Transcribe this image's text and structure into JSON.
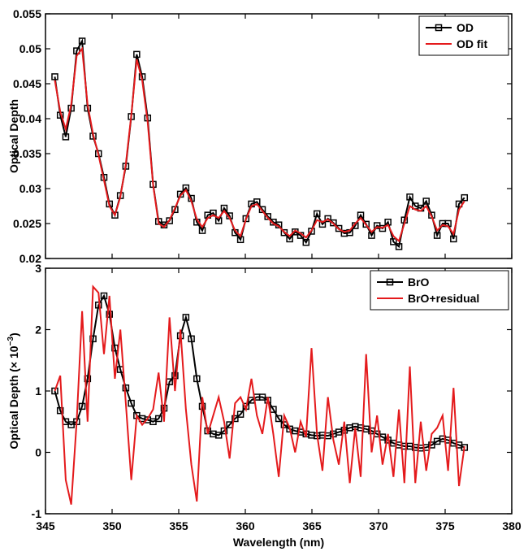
{
  "chart_data": [
    {
      "type": "line",
      "ylabel": "Optical Depth",
      "show_xtick_labels": false,
      "xlim": [
        345,
        380
      ],
      "xticks": [
        345,
        350,
        355,
        360,
        365,
        370,
        375,
        380
      ],
      "ylim": [
        0.02,
        0.055
      ],
      "yticks": [
        0.02,
        0.025,
        0.03,
        0.035,
        0.04,
        0.045,
        0.05,
        0.055
      ],
      "legend": "top-right",
      "x": [
        345.7,
        346.11,
        346.52,
        346.93,
        347.34,
        347.75,
        348.16,
        348.57,
        348.98,
        349.39,
        349.8,
        350.21,
        350.62,
        351.03,
        351.44,
        351.85,
        352.26,
        352.67,
        353.08,
        353.49,
        353.9,
        354.31,
        354.72,
        355.13,
        355.54,
        355.95,
        356.36,
        356.77,
        357.18,
        357.59,
        358.0,
        358.41,
        358.82,
        359.23,
        359.64,
        360.05,
        360.46,
        360.87,
        361.28,
        361.69,
        362.1,
        362.51,
        362.92,
        363.33,
        363.74,
        364.15,
        364.56,
        364.97,
        365.38,
        365.79,
        366.2,
        366.61,
        367.02,
        367.43,
        367.84,
        368.25,
        368.66,
        369.07,
        369.48,
        369.89,
        370.3,
        370.71,
        371.12,
        371.53,
        371.94,
        372.35,
        372.76,
        373.17,
        373.58,
        373.99,
        374.4,
        374.81,
        375.22,
        375.63,
        376.04,
        376.45
      ],
      "series": [
        {
          "name": "OD",
          "color": "#000000",
          "marker": "square",
          "values": [
            0.046,
            0.0405,
            0.0374,
            0.0415,
            0.0497,
            0.0511,
            0.0415,
            0.0375,
            0.035,
            0.0316,
            0.0278,
            0.0262,
            0.029,
            0.0332,
            0.0403,
            0.0492,
            0.046,
            0.0401,
            0.0306,
            0.0253,
            0.0248,
            0.0254,
            0.027,
            0.0292,
            0.0301,
            0.0286,
            0.0252,
            0.024,
            0.0262,
            0.0265,
            0.0254,
            0.0272,
            0.0261,
            0.0237,
            0.0227,
            0.0257,
            0.0278,
            0.0281,
            0.027,
            0.026,
            0.0252,
            0.0248,
            0.0237,
            0.0228,
            0.0238,
            0.0233,
            0.0223,
            0.0239,
            0.0264,
            0.0249,
            0.0257,
            0.0251,
            0.0243,
            0.0236,
            0.0237,
            0.0247,
            0.0262,
            0.0249,
            0.0233,
            0.0247,
            0.0243,
            0.0252,
            0.0224,
            0.0217,
            0.0255,
            0.0288,
            0.0275,
            0.0272,
            0.0282,
            0.0262,
            0.0233,
            0.025,
            0.025,
            0.0228,
            0.0278,
            0.0287
          ]
        },
        {
          "name": "OD fit",
          "color": "#e41a1c",
          "marker": "none",
          "values": [
            0.0455,
            0.041,
            0.0385,
            0.042,
            0.049,
            0.05,
            0.042,
            0.0378,
            0.0348,
            0.0312,
            0.0275,
            0.0262,
            0.0288,
            0.0335,
            0.0405,
            0.0485,
            0.0455,
            0.0395,
            0.0305,
            0.025,
            0.0245,
            0.0255,
            0.0272,
            0.029,
            0.0298,
            0.0282,
            0.0256,
            0.0245,
            0.0258,
            0.0262,
            0.0258,
            0.0268,
            0.0258,
            0.024,
            0.0232,
            0.0256,
            0.0275,
            0.0278,
            0.0268,
            0.0258,
            0.025,
            0.0246,
            0.0238,
            0.0232,
            0.024,
            0.0236,
            0.023,
            0.024,
            0.0255,
            0.0252,
            0.0256,
            0.025,
            0.0242,
            0.0238,
            0.024,
            0.025,
            0.0258,
            0.0248,
            0.0238,
            0.0245,
            0.0244,
            0.0248,
            0.0232,
            0.0225,
            0.025,
            0.0275,
            0.027,
            0.0268,
            0.0275,
            0.026,
            0.024,
            0.0248,
            0.0246,
            0.0235,
            0.027,
            0.0282
          ]
        }
      ]
    },
    {
      "type": "line",
      "ylabel": {
        "text": "Optical Depth (× 10",
        "superscript": "−3",
        "suffix": ")"
      },
      "xlabel": "Wavelength (nm)",
      "show_xtick_labels": true,
      "xlim": [
        345,
        380
      ],
      "xticks": [
        345,
        350,
        355,
        360,
        365,
        370,
        375,
        380
      ],
      "ylim": [
        -1,
        3
      ],
      "yticks": [
        -1,
        0,
        1,
        2,
        3
      ],
      "legend": "top-right",
      "x": [
        345.7,
        346.11,
        346.52,
        346.93,
        347.34,
        347.75,
        348.16,
        348.57,
        348.98,
        349.39,
        349.8,
        350.21,
        350.62,
        351.03,
        351.44,
        351.85,
        352.26,
        352.67,
        353.08,
        353.49,
        353.9,
        354.31,
        354.72,
        355.13,
        355.54,
        355.95,
        356.36,
        356.77,
        357.18,
        357.59,
        358.0,
        358.41,
        358.82,
        359.23,
        359.64,
        360.05,
        360.46,
        360.87,
        361.28,
        361.69,
        362.1,
        362.51,
        362.92,
        363.33,
        363.74,
        364.15,
        364.56,
        364.97,
        365.38,
        365.79,
        366.2,
        366.61,
        367.02,
        367.43,
        367.84,
        368.25,
        368.66,
        369.07,
        369.48,
        369.89,
        370.3,
        370.71,
        371.12,
        371.53,
        371.94,
        372.35,
        372.76,
        373.17,
        373.58,
        373.99,
        374.4,
        374.81,
        375.22,
        375.63,
        376.04,
        376.45
      ],
      "series": [
        {
          "name": "BrO",
          "color": "#000000",
          "marker": "square",
          "values": [
            1.0,
            0.68,
            0.5,
            0.45,
            0.5,
            0.75,
            1.2,
            1.85,
            2.4,
            2.55,
            2.25,
            1.7,
            1.35,
            1.05,
            0.8,
            0.6,
            0.55,
            0.53,
            0.5,
            0.55,
            0.72,
            1.15,
            1.25,
            1.9,
            2.2,
            1.85,
            1.2,
            0.75,
            0.35,
            0.3,
            0.28,
            0.35,
            0.45,
            0.55,
            0.62,
            0.75,
            0.85,
            0.9,
            0.9,
            0.85,
            0.7,
            0.55,
            0.45,
            0.38,
            0.35,
            0.33,
            0.3,
            0.28,
            0.27,
            0.28,
            0.27,
            0.3,
            0.33,
            0.36,
            0.4,
            0.42,
            0.4,
            0.38,
            0.35,
            0.3,
            0.25,
            0.2,
            0.15,
            0.12,
            0.1,
            0.1,
            0.08,
            0.07,
            0.08,
            0.12,
            0.18,
            0.22,
            0.2,
            0.15,
            0.12,
            0.08
          ]
        },
        {
          "name": "BrO+residual",
          "color": "#e41a1c",
          "marker": "none",
          "values": [
            1.0,
            1.25,
            -0.45,
            -0.85,
            0.5,
            2.3,
            0.5,
            2.7,
            2.6,
            1.6,
            2.55,
            1.2,
            2.0,
            0.8,
            -0.45,
            0.6,
            0.45,
            0.55,
            0.7,
            1.3,
            0.5,
            2.2,
            1.0,
            2.0,
            0.7,
            -0.2,
            -0.8,
            0.9,
            0.3,
            0.6,
            0.9,
            0.5,
            -0.1,
            0.8,
            0.9,
            0.7,
            1.2,
            0.6,
            0.3,
            0.9,
            0.3,
            -0.4,
            0.6,
            0.4,
            0.0,
            0.5,
            0.25,
            1.7,
            0.3,
            -0.3,
            0.9,
            0.2,
            -0.2,
            0.5,
            -0.5,
            0.4,
            -0.4,
            1.6,
            0.0,
            0.6,
            -0.2,
            0.3,
            -0.4,
            0.7,
            -0.5,
            1.4,
            -0.5,
            0.5,
            -0.3,
            0.3,
            0.4,
            0.6,
            -0.3,
            1.05,
            -0.55,
            0.1
          ]
        }
      ]
    }
  ]
}
